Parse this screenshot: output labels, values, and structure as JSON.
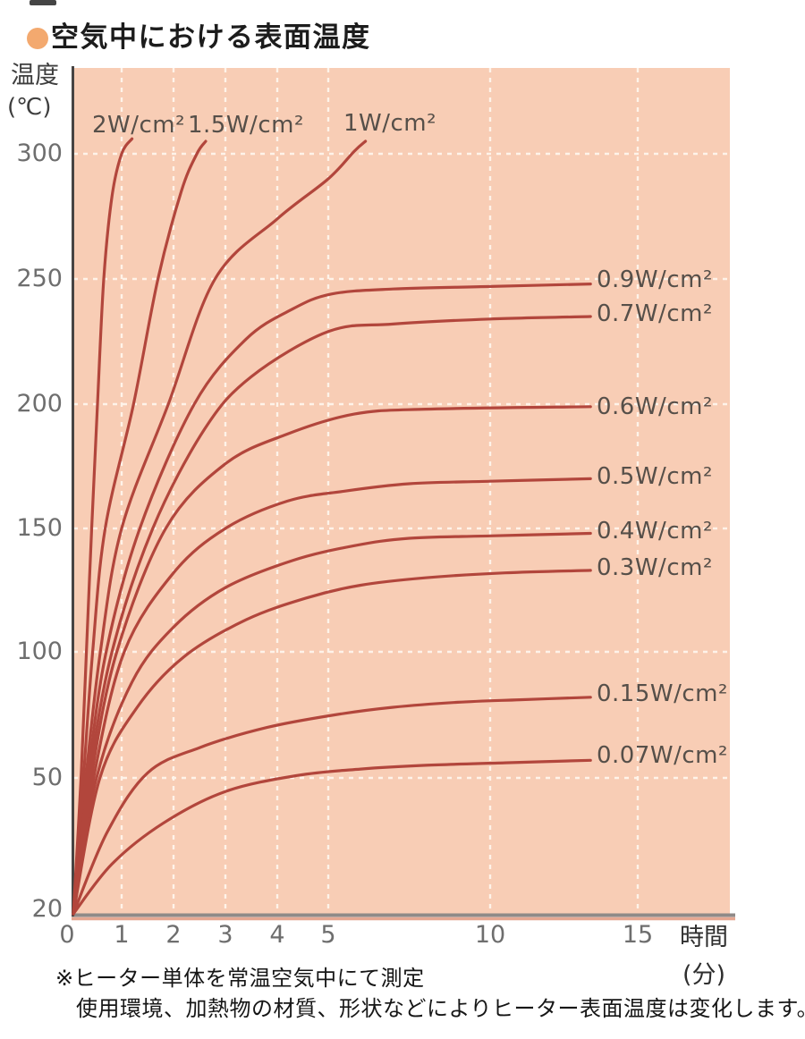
{
  "page": {
    "title": "空気中における表面温度",
    "notes": [
      "※ヒーター単体を常温空気中にて測定",
      "使用環境、加熱物の材質、形状などによりヒーター表面温度は変化します。"
    ]
  },
  "axes": {
    "y_title_line1": "温度",
    "y_title_line2": "(℃)",
    "x_title_line1": "時間",
    "x_title_line2": "(分)"
  },
  "chart_data": {
    "type": "line",
    "title": "空気中における表面温度",
    "xlabel": "時間(分)",
    "ylabel": "温度(℃)",
    "x_ticks": [
      0,
      1,
      2,
      3,
      4,
      5,
      10,
      15
    ],
    "y_ticks": [
      20,
      50,
      100,
      150,
      200,
      250,
      300
    ],
    "x_range": [
      0,
      15
    ],
    "y_range": [
      20,
      310
    ],
    "axis_note": "time axis compressed after 5 min; temperature axis stretched between 20 and 50",
    "grid": "white dashed, vertical at each time tick, horizontal at each 50°C tick",
    "legend_position": "labels beside curve ends",
    "colors": {
      "curve": "#b2463c",
      "plot_bg": "#f8cdb5",
      "grid": "#fff6ec",
      "bullet": "#f3a96f",
      "axis_left": "#474443",
      "axis_bottom": "#8f8a88",
      "axis_shadow": "#e5a791"
    },
    "series": [
      {
        "name": "2W/cm²",
        "label_side": "top",
        "points": [
          [
            0,
            20
          ],
          [
            0.16,
            50
          ],
          [
            0.27,
            100
          ],
          [
            0.38,
            150
          ],
          [
            0.5,
            200
          ],
          [
            0.63,
            250
          ],
          [
            0.8,
            283
          ],
          [
            1.0,
            300
          ],
          [
            1.2,
            306
          ]
        ]
      },
      {
        "name": "1.5W/cm²",
        "label_side": "top",
        "points": [
          [
            0,
            20
          ],
          [
            0.21,
            50
          ],
          [
            0.4,
            100
          ],
          [
            0.66,
            150
          ],
          [
            1.23,
            200
          ],
          [
            1.7,
            250
          ],
          [
            2.15,
            285
          ],
          [
            2.45,
            300
          ],
          [
            2.62,
            305
          ]
        ]
      },
      {
        "name": "1W/cm²",
        "label_side": "top",
        "points": [
          [
            0,
            20
          ],
          [
            0.26,
            50
          ],
          [
            0.56,
            100
          ],
          [
            1.0,
            150
          ],
          [
            1.9,
            200
          ],
          [
            2.8,
            250
          ],
          [
            4.0,
            274
          ],
          [
            5.0,
            290
          ],
          [
            5.8,
            301
          ],
          [
            6.15,
            305
          ]
        ]
      },
      {
        "name": "0.9W/cm²",
        "label_side": "right",
        "points": [
          [
            0,
            20
          ],
          [
            0.3,
            50
          ],
          [
            0.68,
            100
          ],
          [
            1.35,
            150
          ],
          [
            2.4,
            200
          ],
          [
            3.4,
            226
          ],
          [
            4.3,
            238
          ],
          [
            5.1,
            244
          ],
          [
            7,
            246
          ],
          [
            10,
            247
          ],
          [
            13.4,
            248
          ]
        ]
      },
      {
        "name": "0.7W/cm²",
        "label_side": "right",
        "points": [
          [
            0,
            20
          ],
          [
            0.33,
            50
          ],
          [
            0.8,
            100
          ],
          [
            1.6,
            150
          ],
          [
            2.6,
            190
          ],
          [
            3.5,
            211
          ],
          [
            5.0,
            229
          ],
          [
            7,
            232
          ],
          [
            10,
            234
          ],
          [
            13.4,
            235
          ]
        ]
      },
      {
        "name": "0.6W/cm²",
        "label_side": "right",
        "points": [
          [
            0,
            20
          ],
          [
            0.37,
            50
          ],
          [
            0.9,
            100
          ],
          [
            1.85,
            150
          ],
          [
            3.0,
            176
          ],
          [
            4.2,
            188
          ],
          [
            5.8,
            196
          ],
          [
            8,
            198
          ],
          [
            13.4,
            199
          ]
        ]
      },
      {
        "name": "0.5W/cm²",
        "label_side": "right",
        "points": [
          [
            0,
            20
          ],
          [
            0.42,
            50
          ],
          [
            1.05,
            100
          ],
          [
            2.0,
            132
          ],
          [
            3.0,
            150
          ],
          [
            4.2,
            161
          ],
          [
            5.5,
            165
          ],
          [
            7.5,
            168
          ],
          [
            10,
            169
          ],
          [
            13.4,
            170
          ]
        ]
      },
      {
        "name": "0.4W/cm²",
        "label_side": "right",
        "points": [
          [
            0,
            20
          ],
          [
            0.48,
            50
          ],
          [
            1.2,
            88
          ],
          [
            2.0,
            110
          ],
          [
            3.0,
            126
          ],
          [
            4.3,
            137
          ],
          [
            5.8,
            143
          ],
          [
            7.5,
            146
          ],
          [
            10,
            147
          ],
          [
            13.4,
            148
          ]
        ]
      },
      {
        "name": "0.3W/cm²",
        "label_side": "right",
        "points": [
          [
            0,
            20
          ],
          [
            0.55,
            50
          ],
          [
            1.3,
            78
          ],
          [
            2.2,
            98
          ],
          [
            3.4,
            113
          ],
          [
            4.6,
            122
          ],
          [
            6,
            127
          ],
          [
            8,
            130
          ],
          [
            10.5,
            132
          ],
          [
            13.4,
            133
          ]
        ]
      },
      {
        "name": "0.15W/cm²",
        "label_side": "right",
        "points": [
          [
            0,
            20
          ],
          [
            0.7,
            38
          ],
          [
            1.5,
            52
          ],
          [
            2.5,
            62
          ],
          [
            3.8,
            70
          ],
          [
            5.2,
            75
          ],
          [
            7,
            78
          ],
          [
            9,
            80
          ],
          [
            11,
            81
          ],
          [
            13.4,
            82
          ]
        ]
      },
      {
        "name": "0.07W/cm²",
        "label_side": "right",
        "points": [
          [
            0,
            20
          ],
          [
            0.8,
            31
          ],
          [
            1.8,
            40
          ],
          [
            3,
            47
          ],
          [
            4.4,
            51
          ],
          [
            6,
            53.5
          ],
          [
            8,
            55
          ],
          [
            10.5,
            56
          ],
          [
            13.4,
            57
          ]
        ]
      }
    ]
  }
}
